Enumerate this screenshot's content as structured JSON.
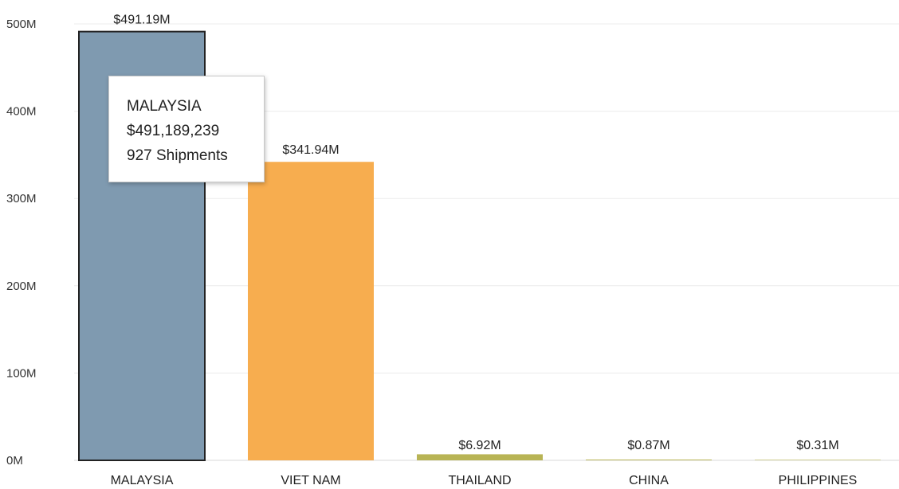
{
  "chart_data": {
    "type": "bar",
    "categories": [
      "MALAYSIA",
      "VIET NAM",
      "THAILAND",
      "CHINA",
      "PHILIPPINES"
    ],
    "values": [
      491.19,
      341.94,
      6.92,
      0.87,
      0.31
    ],
    "data_labels": [
      "$491.19M",
      "$341.94M",
      "$6.92M",
      "$0.87M",
      "$0.31M"
    ],
    "colors": [
      "#7f9ab0",
      "#f7ad4f",
      "#b8b455",
      "#b8b455",
      "#b8b455"
    ],
    "highlighted_index": 0,
    "y_ticks": [
      0,
      100,
      200,
      300,
      400,
      500
    ],
    "y_tick_labels": [
      "0M",
      "100M",
      "200M",
      "300M",
      "400M",
      "500M"
    ],
    "ylim": [
      0,
      500
    ],
    "grid": true,
    "title": "",
    "xlabel": "",
    "ylabel": ""
  },
  "tooltip": {
    "country": "MALAYSIA",
    "value": "$491,189,239",
    "shipments": "927 Shipments"
  }
}
